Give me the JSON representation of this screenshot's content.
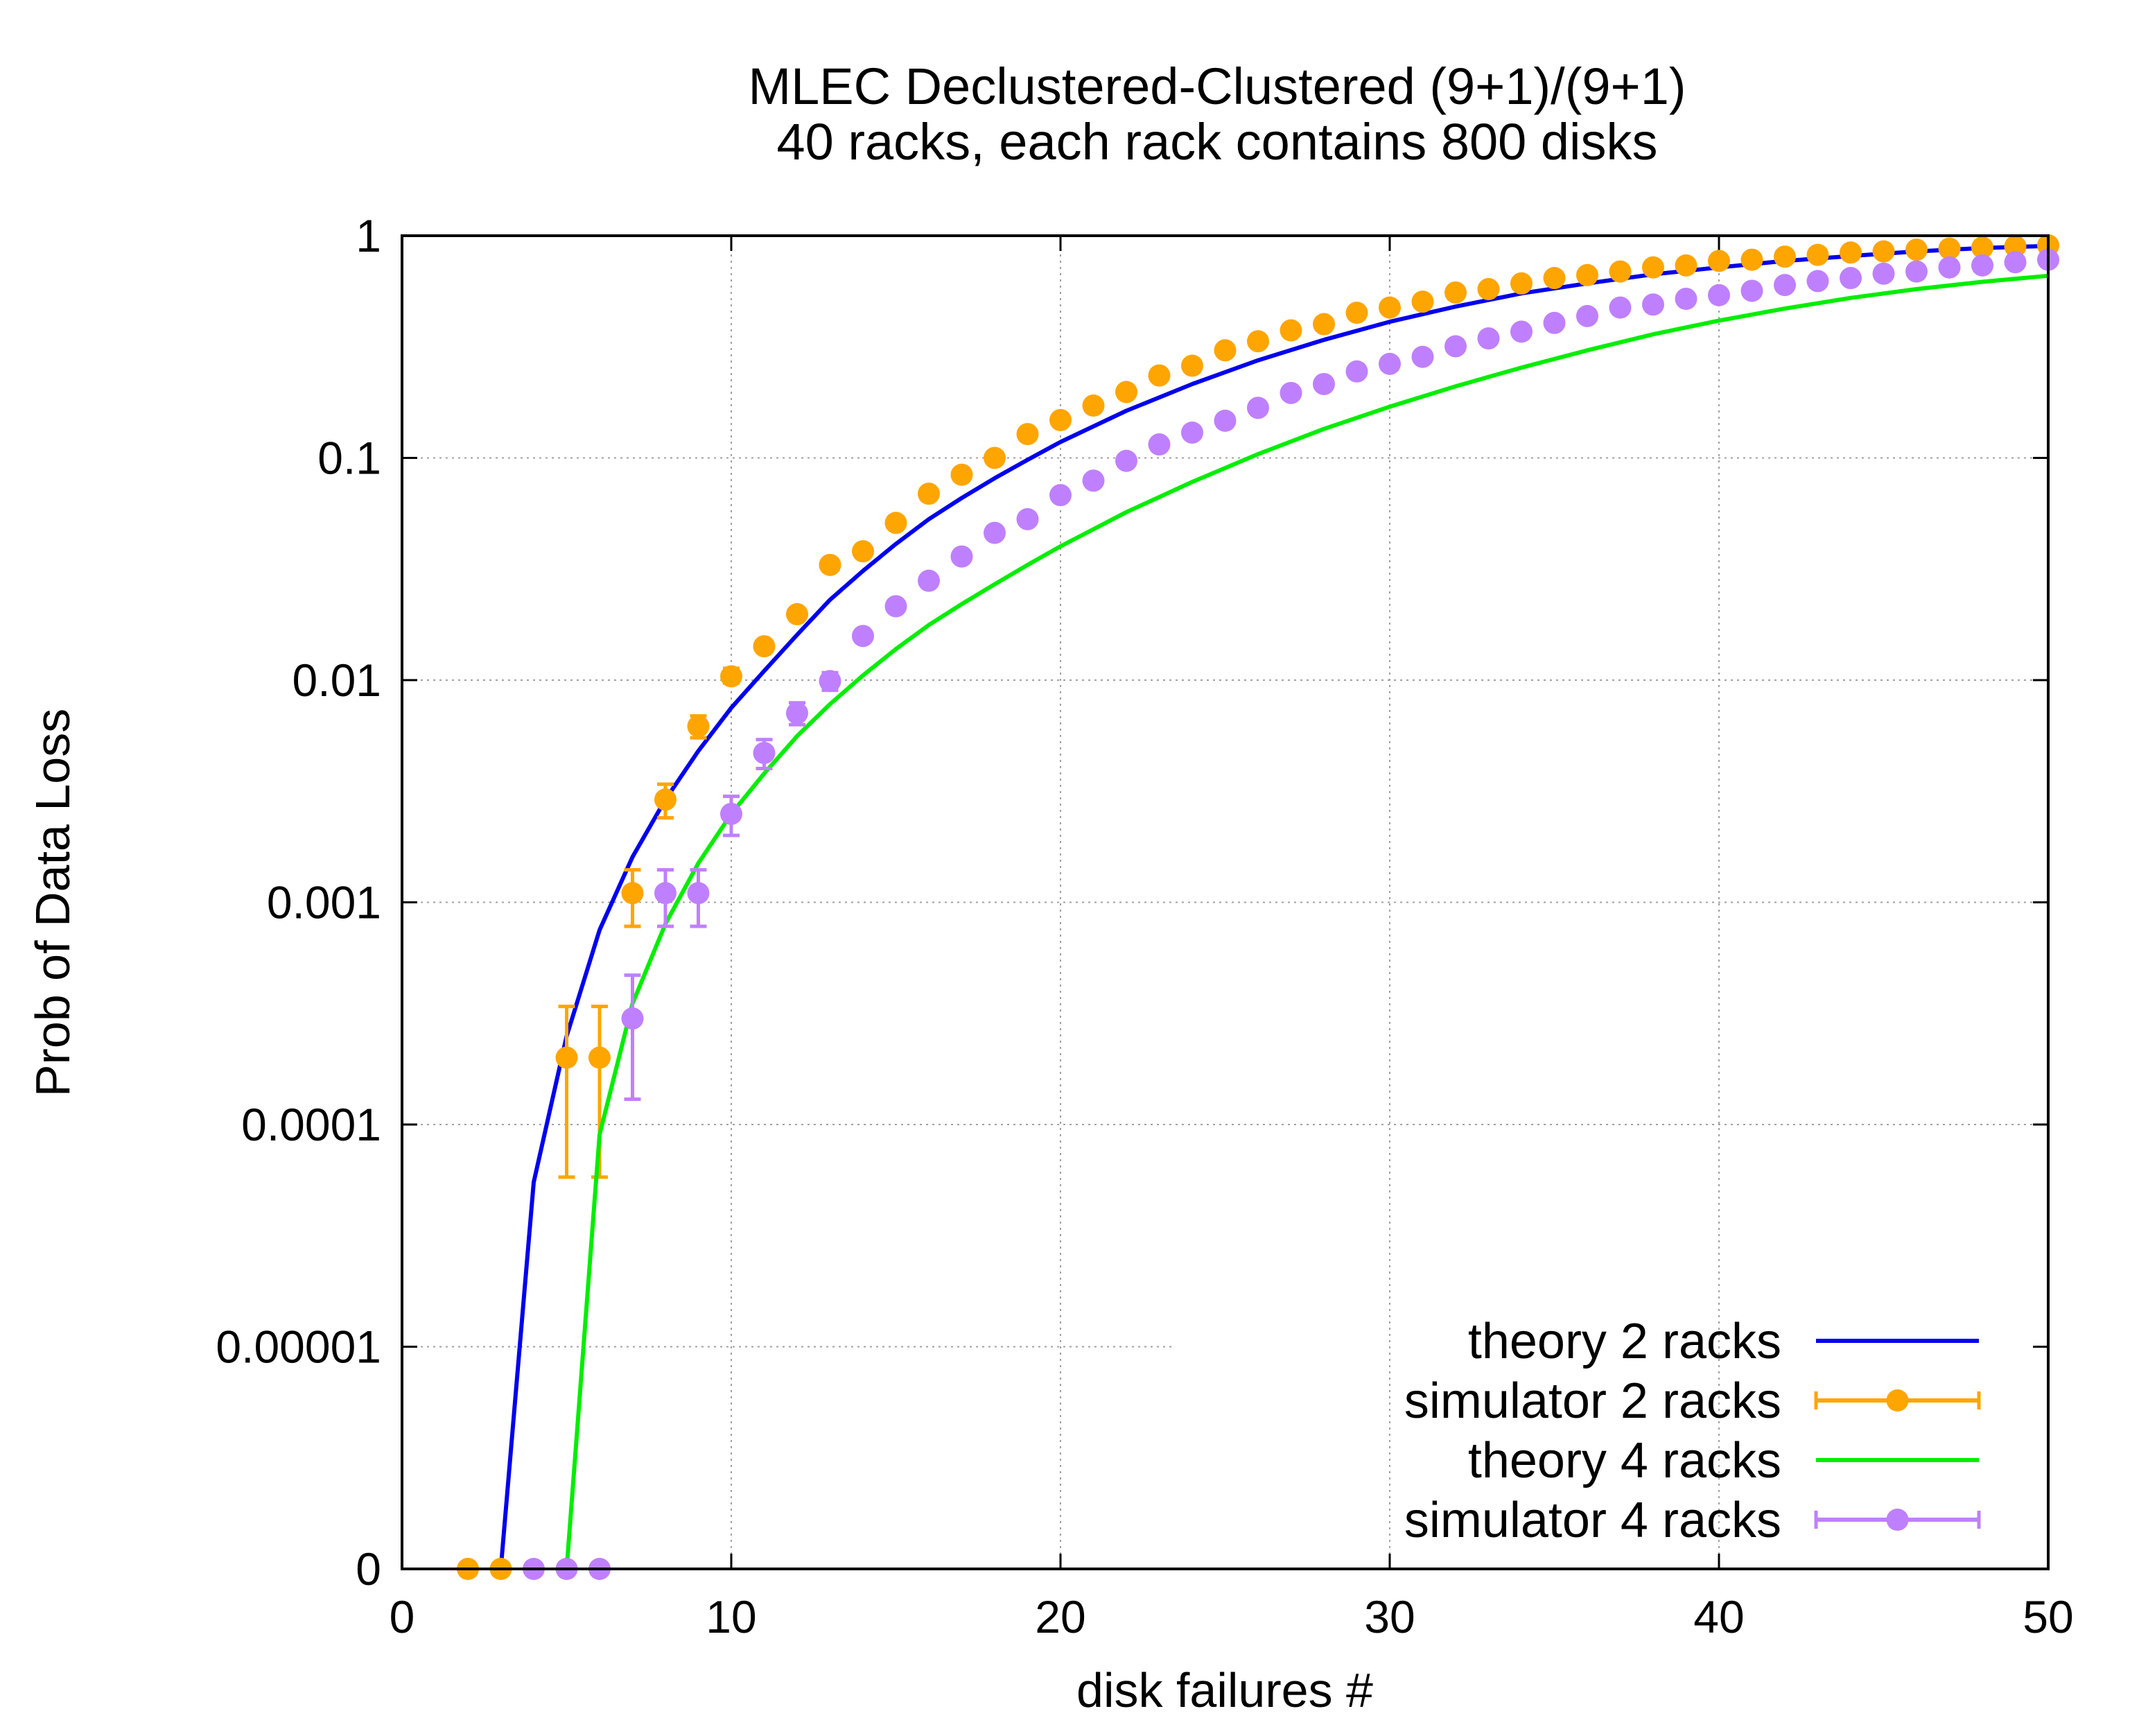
{
  "chart_data": {
    "type": "line",
    "title": "MLEC Declustered-Clustered (9+1)/(9+1)",
    "subtitle": "40 racks, each rack contains 800 disks",
    "xlabel": "disk failures #",
    "ylabel": "Prob of Data Loss",
    "xlim": [
      0,
      50
    ],
    "yscale": "log",
    "ylim_decades": [
      -6,
      0
    ],
    "x_ticks": [
      0,
      10,
      20,
      30,
      40,
      50
    ],
    "y_ticks": [
      {
        "label": "0",
        "log": -6
      },
      {
        "label": "0.00001",
        "log": -5
      },
      {
        "label": "0.0001",
        "log": -4
      },
      {
        "label": "0.001",
        "log": -3
      },
      {
        "label": "0.01",
        "log": -2
      },
      {
        "label": "0.1",
        "log": -1
      },
      {
        "label": "1",
        "log": 0
      }
    ],
    "grid": true,
    "legend_position": "bottom-right",
    "series": [
      {
        "name": "theory 2 racks",
        "kind": "line",
        "color": "#0000ee",
        "x": [
          3,
          4,
          5,
          6,
          7,
          8,
          9,
          10,
          11,
          12,
          13,
          14,
          15,
          16,
          17,
          18,
          19,
          20,
          22,
          24,
          26,
          28,
          30,
          32,
          34,
          36,
          38,
          40,
          42,
          44,
          46,
          48,
          50
        ],
        "y": [
          0,
          5.5e-05,
          0.00025,
          0.00075,
          0.0016,
          0.0029,
          0.0048,
          0.0075,
          0.011,
          0.016,
          0.023,
          0.031,
          0.041,
          0.053,
          0.066,
          0.081,
          0.098,
          0.118,
          0.163,
          0.215,
          0.275,
          0.34,
          0.41,
          0.48,
          0.55,
          0.61,
          0.67,
          0.72,
          0.77,
          0.81,
          0.85,
          0.88,
          0.9
        ]
      },
      {
        "name": "simulator 2 racks",
        "kind": "points_errorbars",
        "color": "#ffa500",
        "points": [
          {
            "x": 2,
            "y": 0
          },
          {
            "x": 3,
            "y": 0
          },
          {
            "x": 5,
            "y": 0.0002,
            "lo": 5.8e-05,
            "hi": 0.00034
          },
          {
            "x": 6,
            "y": 0.0002,
            "lo": 5.8e-05,
            "hi": 0.00034
          },
          {
            "x": 7,
            "y": 0.0011,
            "lo": 0.00078,
            "hi": 0.0014
          },
          {
            "x": 8,
            "y": 0.0029,
            "lo": 0.0024,
            "hi": 0.0034
          },
          {
            "x": 9,
            "y": 0.0062,
            "lo": 0.0055,
            "hi": 0.0069
          },
          {
            "x": 10,
            "y": 0.0104,
            "lo": 0.0097,
            "hi": 0.0113
          },
          {
            "x": 11,
            "y": 0.0142
          },
          {
            "x": 12,
            "y": 0.0198
          },
          {
            "x": 13,
            "y": 0.033
          },
          {
            "x": 14,
            "y": 0.038
          },
          {
            "x": 15,
            "y": 0.051
          },
          {
            "x": 16,
            "y": 0.069
          },
          {
            "x": 17,
            "y": 0.084
          },
          {
            "x": 18,
            "y": 0.1
          },
          {
            "x": 19,
            "y": 0.128
          },
          {
            "x": 20,
            "y": 0.148
          },
          {
            "x": 21,
            "y": 0.172
          },
          {
            "x": 22,
            "y": 0.198
          },
          {
            "x": 23,
            "y": 0.235
          },
          {
            "x": 24,
            "y": 0.26
          },
          {
            "x": 25,
            "y": 0.305
          },
          {
            "x": 26,
            "y": 0.335
          },
          {
            "x": 27,
            "y": 0.375
          },
          {
            "x": 28,
            "y": 0.4
          },
          {
            "x": 29,
            "y": 0.45
          },
          {
            "x": 30,
            "y": 0.475
          },
          {
            "x": 31,
            "y": 0.505
          },
          {
            "x": 32,
            "y": 0.555
          },
          {
            "x": 33,
            "y": 0.575
          },
          {
            "x": 34,
            "y": 0.61
          },
          {
            "x": 35,
            "y": 0.645
          },
          {
            "x": 36,
            "y": 0.665
          },
          {
            "x": 37,
            "y": 0.69
          },
          {
            "x": 38,
            "y": 0.72
          },
          {
            "x": 39,
            "y": 0.735
          },
          {
            "x": 40,
            "y": 0.77
          },
          {
            "x": 41,
            "y": 0.78
          },
          {
            "x": 42,
            "y": 0.805
          },
          {
            "x": 43,
            "y": 0.82
          },
          {
            "x": 44,
            "y": 0.84
          },
          {
            "x": 45,
            "y": 0.85
          },
          {
            "x": 46,
            "y": 0.865
          },
          {
            "x": 47,
            "y": 0.875
          },
          {
            "x": 48,
            "y": 0.885
          },
          {
            "x": 49,
            "y": 0.895
          },
          {
            "x": 50,
            "y": 0.905
          }
        ]
      },
      {
        "name": "theory 4 racks",
        "kind": "line",
        "color": "#00ee00",
        "x": [
          5,
          6,
          7,
          8,
          9,
          10,
          11,
          12,
          13,
          14,
          15,
          16,
          17,
          18,
          19,
          20,
          22,
          24,
          26,
          28,
          30,
          32,
          34,
          36,
          38,
          40,
          42,
          44,
          46,
          48,
          50
        ],
        "y": [
          0,
          9e-05,
          0.00035,
          0.0008,
          0.0015,
          0.0025,
          0.0038,
          0.0056,
          0.0078,
          0.0105,
          0.0138,
          0.0177,
          0.022,
          0.027,
          0.033,
          0.04,
          0.057,
          0.078,
          0.104,
          0.135,
          0.17,
          0.21,
          0.255,
          0.305,
          0.36,
          0.415,
          0.47,
          0.525,
          0.575,
          0.62,
          0.66
        ]
      },
      {
        "name": "simulator 4 racks",
        "kind": "points_errorbars",
        "color": "#bf80ff",
        "points": [
          {
            "x": 4,
            "y": 0
          },
          {
            "x": 5,
            "y": 0
          },
          {
            "x": 6,
            "y": 0
          },
          {
            "x": 7,
            "y": 0.0003,
            "lo": 0.00013,
            "hi": 0.00047
          },
          {
            "x": 8,
            "y": 0.0011,
            "lo": 0.00078,
            "hi": 0.0014
          },
          {
            "x": 9,
            "y": 0.0011,
            "lo": 0.00078,
            "hi": 0.0014
          },
          {
            "x": 10,
            "y": 0.0025,
            "lo": 0.002,
            "hi": 0.003
          },
          {
            "x": 11,
            "y": 0.0047,
            "lo": 0.004,
            "hi": 0.0054
          },
          {
            "x": 12,
            "y": 0.0071,
            "lo": 0.0063,
            "hi": 0.0079
          },
          {
            "x": 13,
            "y": 0.0099,
            "lo": 0.009,
            "hi": 0.0108
          },
          {
            "x": 14,
            "y": 0.0158
          },
          {
            "x": 15,
            "y": 0.0215
          },
          {
            "x": 16,
            "y": 0.028
          },
          {
            "x": 17,
            "y": 0.036
          },
          {
            "x": 18,
            "y": 0.046
          },
          {
            "x": 19,
            "y": 0.053
          },
          {
            "x": 20,
            "y": 0.068
          },
          {
            "x": 21,
            "y": 0.079
          },
          {
            "x": 22,
            "y": 0.097
          },
          {
            "x": 23,
            "y": 0.115
          },
          {
            "x": 24,
            "y": 0.13
          },
          {
            "x": 25,
            "y": 0.147
          },
          {
            "x": 26,
            "y": 0.168
          },
          {
            "x": 27,
            "y": 0.196
          },
          {
            "x": 28,
            "y": 0.215
          },
          {
            "x": 29,
            "y": 0.245
          },
          {
            "x": 30,
            "y": 0.265
          },
          {
            "x": 31,
            "y": 0.285
          },
          {
            "x": 32,
            "y": 0.318
          },
          {
            "x": 33,
            "y": 0.345
          },
          {
            "x": 34,
            "y": 0.37
          },
          {
            "x": 35,
            "y": 0.405
          },
          {
            "x": 36,
            "y": 0.435
          },
          {
            "x": 37,
            "y": 0.475
          },
          {
            "x": 38,
            "y": 0.49
          },
          {
            "x": 39,
            "y": 0.52
          },
          {
            "x": 40,
            "y": 0.54
          },
          {
            "x": 41,
            "y": 0.565
          },
          {
            "x": 42,
            "y": 0.6
          },
          {
            "x": 43,
            "y": 0.625
          },
          {
            "x": 44,
            "y": 0.645
          },
          {
            "x": 45,
            "y": 0.675
          },
          {
            "x": 46,
            "y": 0.69
          },
          {
            "x": 47,
            "y": 0.72
          },
          {
            "x": 48,
            "y": 0.735
          },
          {
            "x": 49,
            "y": 0.76
          },
          {
            "x": 50,
            "y": 0.78
          }
        ]
      }
    ]
  }
}
